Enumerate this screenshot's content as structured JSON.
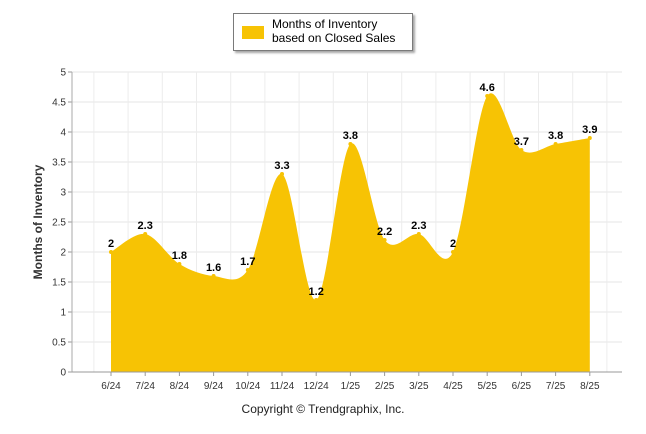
{
  "chart_data": {
    "type": "area",
    "categories": [
      "6/24",
      "7/24",
      "8/24",
      "9/24",
      "10/24",
      "11/24",
      "12/24",
      "1/25",
      "2/25",
      "3/25",
      "4/25",
      "5/25",
      "6/25",
      "7/25",
      "8/25"
    ],
    "series": [
      {
        "name": "Months of Inventory based on Closed Sales",
        "values": [
          2,
          2.3,
          1.8,
          1.6,
          1.7,
          3.3,
          1.2,
          3.8,
          2.2,
          2.3,
          2,
          4.6,
          3.7,
          3.8,
          3.9
        ],
        "color": "#F7C304"
      }
    ],
    "data_labels": [
      "2",
      "2.3",
      "1.8",
      "1.6",
      "1.7",
      "3.3",
      "1.2",
      "3.8",
      "2.2",
      "2.3",
      "2",
      "4.6",
      "3.7",
      "3.8",
      "3.9"
    ],
    "ylabel": "Months of Inventory",
    "xlabel": "",
    "ylim": [
      0,
      5
    ],
    "yticks": [
      "0",
      "0.5",
      "1",
      "1.5",
      "2",
      "2.5",
      "3",
      "3.5",
      "4",
      "4.5",
      "5"
    ],
    "grid": true,
    "legend_position": "top-center"
  },
  "legend": {
    "label": "Months of Inventory based on Closed Sales",
    "color": "#F7C304"
  },
  "footer": {
    "copyright": "Copyright © Trendgraphix, Inc."
  }
}
